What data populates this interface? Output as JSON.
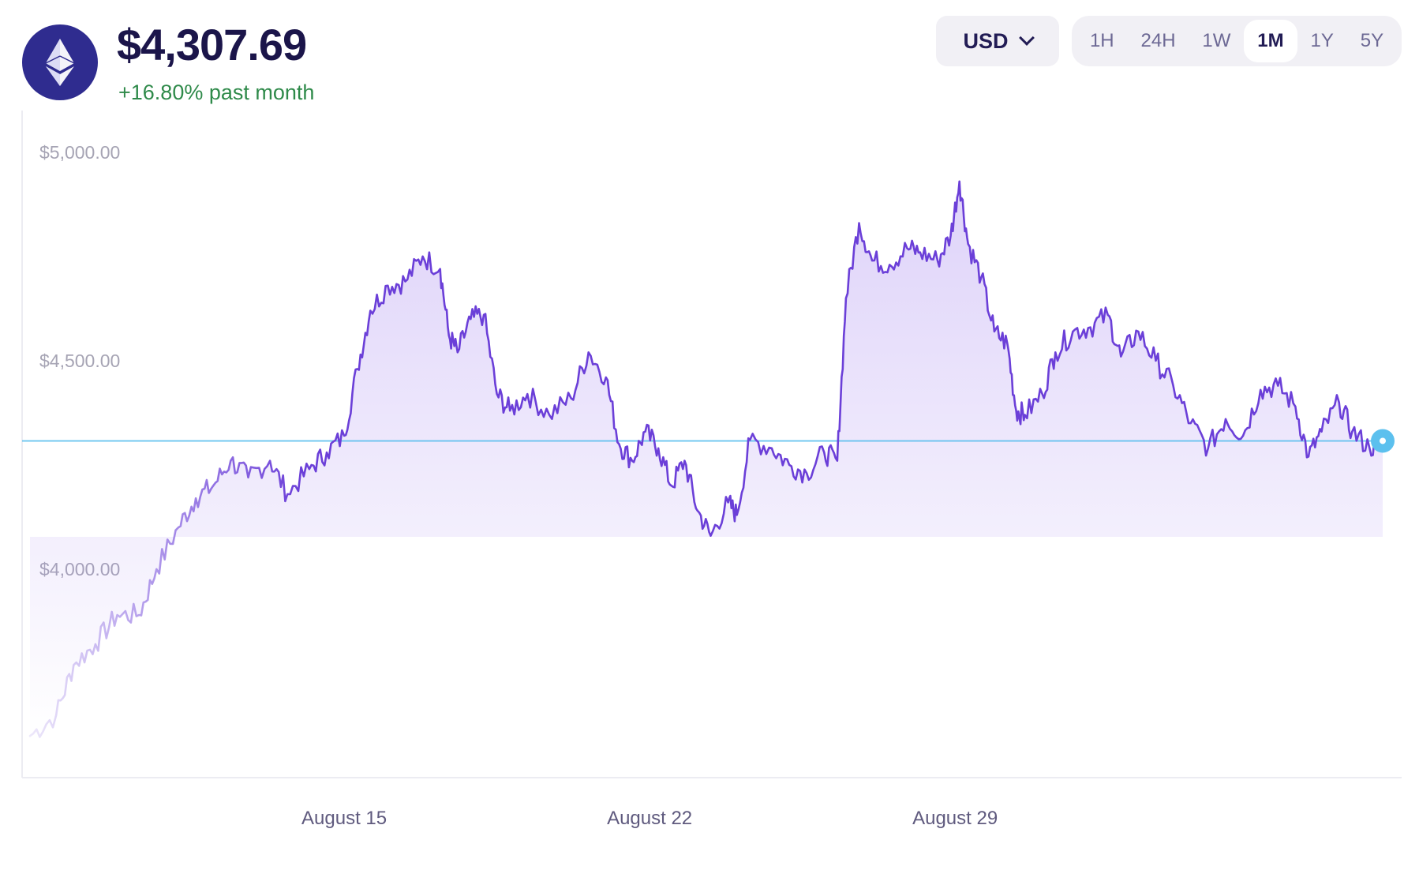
{
  "header": {
    "logo_icon": "ethereum-icon",
    "price": "$4,307.69",
    "change": "+16.80% past month",
    "change_color": "#2f8a4a"
  },
  "currency": {
    "selected": "USD",
    "icon": "chevron-down-icon"
  },
  "ranges": [
    {
      "label": "1H",
      "active": false
    },
    {
      "label": "24H",
      "active": false
    },
    {
      "label": "1W",
      "active": false
    },
    {
      "label": "1M",
      "active": true
    },
    {
      "label": "1Y",
      "active": false
    },
    {
      "label": "5Y",
      "active": false
    }
  ],
  "colors": {
    "line": "#6b3fd8",
    "reference": "#5cc0ee",
    "marker": "#5cc0ee"
  },
  "chart_data": {
    "type": "area",
    "title": "",
    "xlabel": "",
    "ylabel": "",
    "y_ticks": [
      {
        "label": "$5,000.00",
        "value": 5000
      },
      {
        "label": "$4,500.00",
        "value": 4500
      },
      {
        "label": "$4,000.00",
        "value": 4000
      }
    ],
    "x_ticks": [
      {
        "label": "August 15",
        "day": 15
      },
      {
        "label": "August 22",
        "day": 22
      },
      {
        "label": "August 29",
        "day": 29
      }
    ],
    "x_range_days": [
      7.8,
      38.8
    ],
    "ylim": [
      3500,
      5100
    ],
    "reference_value": 4307.69,
    "grid": false,
    "legend": "none",
    "series": [
      {
        "points": [
          [
            7.8,
            3600
          ],
          [
            8.4,
            3650
          ],
          [
            8.8,
            3770
          ],
          [
            9.3,
            3820
          ],
          [
            9.8,
            3890
          ],
          [
            10.3,
            3890
          ],
          [
            10.7,
            4000
          ],
          [
            11.2,
            4100
          ],
          [
            11.6,
            4170
          ],
          [
            12.0,
            4200
          ],
          [
            12.4,
            4260
          ],
          [
            12.8,
            4220
          ],
          [
            13.3,
            4260
          ],
          [
            13.7,
            4180
          ],
          [
            14.2,
            4240
          ],
          [
            14.6,
            4280
          ],
          [
            15.0,
            4320
          ],
          [
            15.3,
            4480
          ],
          [
            15.6,
            4620
          ],
          [
            16.0,
            4680
          ],
          [
            16.4,
            4690
          ],
          [
            16.8,
            4750
          ],
          [
            17.2,
            4720
          ],
          [
            17.4,
            4560
          ],
          [
            17.6,
            4520
          ],
          [
            17.9,
            4600
          ],
          [
            18.2,
            4610
          ],
          [
            18.5,
            4420
          ],
          [
            18.8,
            4380
          ],
          [
            19.2,
            4420
          ],
          [
            19.7,
            4370
          ],
          [
            20.2,
            4410
          ],
          [
            20.6,
            4520
          ],
          [
            21.0,
            4460
          ],
          [
            21.3,
            4300
          ],
          [
            21.6,
            4260
          ],
          [
            21.9,
            4330
          ],
          [
            22.2,
            4290
          ],
          [
            22.5,
            4200
          ],
          [
            22.8,
            4260
          ],
          [
            23.1,
            4140
          ],
          [
            23.4,
            4080
          ],
          [
            23.8,
            4160
          ],
          [
            24.0,
            4130
          ],
          [
            24.3,
            4310
          ],
          [
            24.8,
            4290
          ],
          [
            25.2,
            4250
          ],
          [
            25.6,
            4230
          ],
          [
            26.0,
            4280
          ],
          [
            26.3,
            4260
          ],
          [
            26.5,
            4650
          ],
          [
            26.8,
            4830
          ],
          [
            27.1,
            4740
          ],
          [
            27.5,
            4730
          ],
          [
            27.9,
            4770
          ],
          [
            28.2,
            4760
          ],
          [
            28.6,
            4740
          ],
          [
            28.9,
            4800
          ],
          [
            29.1,
            4930
          ],
          [
            29.3,
            4780
          ],
          [
            29.6,
            4700
          ],
          [
            29.9,
            4570
          ],
          [
            30.2,
            4540
          ],
          [
            30.4,
            4380
          ],
          [
            30.6,
            4370
          ],
          [
            31.0,
            4420
          ],
          [
            31.3,
            4520
          ],
          [
            31.7,
            4570
          ],
          [
            32.1,
            4580
          ],
          [
            32.5,
            4610
          ],
          [
            32.8,
            4510
          ],
          [
            33.2,
            4570
          ],
          [
            33.6,
            4500
          ],
          [
            34.0,
            4440
          ],
          [
            34.4,
            4350
          ],
          [
            34.8,
            4290
          ],
          [
            35.2,
            4360
          ],
          [
            35.6,
            4320
          ],
          [
            36.0,
            4430
          ],
          [
            36.4,
            4440
          ],
          [
            36.8,
            4390
          ],
          [
            37.1,
            4270
          ],
          [
            37.4,
            4330
          ],
          [
            37.8,
            4400
          ],
          [
            38.1,
            4330
          ],
          [
            38.5,
            4290
          ],
          [
            38.8,
            4307.69
          ]
        ]
      }
    ]
  }
}
